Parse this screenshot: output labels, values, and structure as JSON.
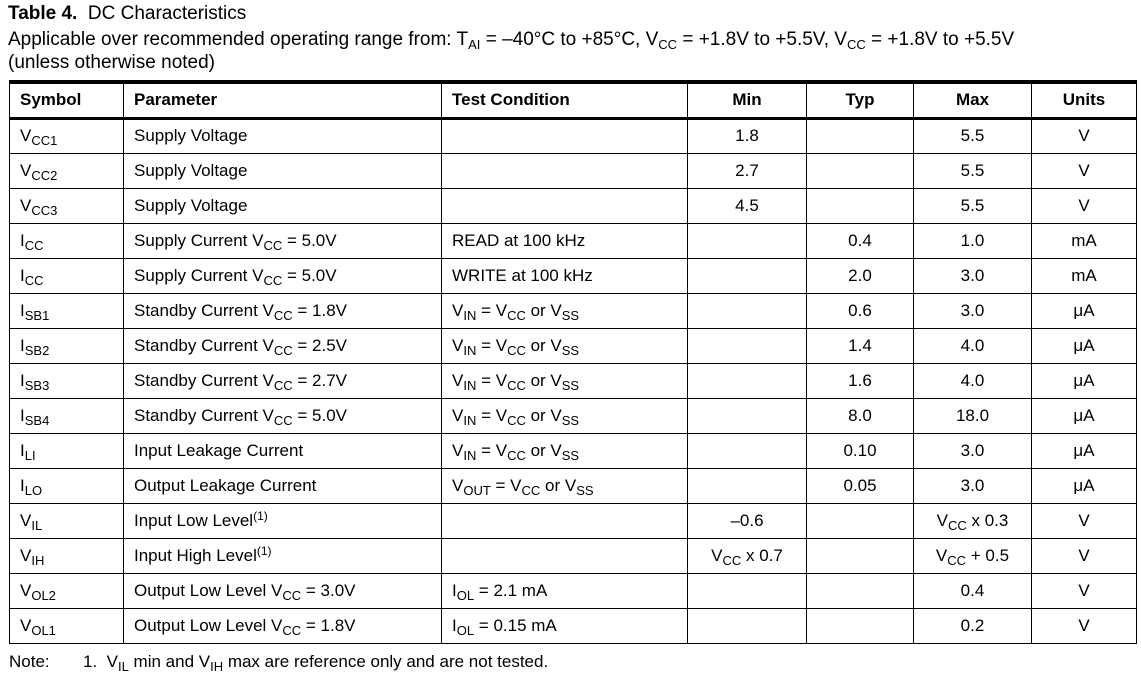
{
  "title": {
    "number": "Table 4.",
    "text": "DC Characteristics"
  },
  "subtitle": {
    "prefix": "Applicable over recommended operating range from: T",
    "t_sub": "AI",
    "range1": " = –40°C to +85°C, V",
    "vcc_sub1": "CC",
    "range2": " = +1.8V to +5.5V, V",
    "vcc_sub2": "CC",
    "range3": " = +1.8V to +5.5V",
    "line2": "(unless otherwise noted)"
  },
  "headers": [
    "Symbol",
    "Parameter",
    "Test Condition",
    "Min",
    "Typ",
    "Max",
    "Units"
  ],
  "rows": [
    {
      "sym": "V",
      "sym_sub": "CC1",
      "param": "Supply Voltage",
      "param_sub": "",
      "param_tail": "",
      "param_sup": "",
      "cond": {
        "t1": "",
        "s1": "",
        "t2": "",
        "s2": "",
        "t3": "",
        "s3": ""
      },
      "min": "1.8",
      "typ": "",
      "max": "5.5",
      "units": "V"
    },
    {
      "sym": "V",
      "sym_sub": "CC2",
      "param": "Supply Voltage",
      "param_sub": "",
      "param_tail": "",
      "param_sup": "",
      "cond": {
        "t1": "",
        "s1": "",
        "t2": "",
        "s2": "",
        "t3": "",
        "s3": ""
      },
      "min": "2.7",
      "typ": "",
      "max": "5.5",
      "units": "V"
    },
    {
      "sym": "V",
      "sym_sub": "CC3",
      "param": "Supply Voltage",
      "param_sub": "",
      "param_tail": "",
      "param_sup": "",
      "cond": {
        "t1": "",
        "s1": "",
        "t2": "",
        "s2": "",
        "t3": "",
        "s3": ""
      },
      "min": "4.5",
      "typ": "",
      "max": "5.5",
      "units": "V"
    },
    {
      "sym": "I",
      "sym_sub": "CC",
      "param": "Supply Current V",
      "param_sub": "CC",
      "param_tail": " = 5.0V",
      "param_sup": "",
      "cond": {
        "t1": "READ at 100 kHz",
        "s1": "",
        "t2": "",
        "s2": "",
        "t3": "",
        "s3": ""
      },
      "min": "",
      "typ": "0.4",
      "max": "1.0",
      "units": "mA"
    },
    {
      "sym": "I",
      "sym_sub": "CC",
      "param": "Supply Current V",
      "param_sub": "CC",
      "param_tail": " = 5.0V",
      "param_sup": "",
      "cond": {
        "t1": "WRITE at 100 kHz",
        "s1": "",
        "t2": "",
        "s2": "",
        "t3": "",
        "s3": ""
      },
      "min": "",
      "typ": "2.0",
      "max": "3.0",
      "units": "mA"
    },
    {
      "sym": "I",
      "sym_sub": "SB1",
      "param": "Standby Current V",
      "param_sub": "CC",
      "param_tail": " = 1.8V",
      "param_sup": "",
      "cond": {
        "t1": "V",
        "s1": "IN",
        "t2": " = V",
        "s2": "CC",
        "t3": " or V",
        "s3": "SS"
      },
      "min": "",
      "typ": "0.6",
      "max": "3.0",
      "units": "μA"
    },
    {
      "sym": "I",
      "sym_sub": "SB2",
      "param": "Standby Current V",
      "param_sub": "CC",
      "param_tail": " = 2.5V",
      "param_sup": "",
      "cond": {
        "t1": "V",
        "s1": "IN",
        "t2": " = V",
        "s2": "CC",
        "t3": " or V",
        "s3": "SS"
      },
      "min": "",
      "typ": "1.4",
      "max": "4.0",
      "units": "μA"
    },
    {
      "sym": "I",
      "sym_sub": "SB3",
      "param": "Standby Current V",
      "param_sub": "CC",
      "param_tail": " = 2.7V",
      "param_sup": "",
      "cond": {
        "t1": "V",
        "s1": "IN",
        "t2": " = V",
        "s2": "CC",
        "t3": " or V",
        "s3": "SS"
      },
      "min": "",
      "typ": "1.6",
      "max": "4.0",
      "units": "μA"
    },
    {
      "sym": "I",
      "sym_sub": "SB4",
      "param": "Standby Current V",
      "param_sub": "CC",
      "param_tail": " = 5.0V",
      "param_sup": "",
      "cond": {
        "t1": "V",
        "s1": "IN",
        "t2": " = V",
        "s2": "CC",
        "t3": " or V",
        "s3": "SS"
      },
      "min": "",
      "typ": "8.0",
      "max": "18.0",
      "units": "μA"
    },
    {
      "sym": "I",
      "sym_sub": "LI",
      "param": "Input Leakage Current",
      "param_sub": "",
      "param_tail": "",
      "param_sup": "",
      "cond": {
        "t1": "V",
        "s1": "IN",
        "t2": " = V",
        "s2": "CC",
        "t3": " or V",
        "s3": "SS"
      },
      "min": "",
      "typ": "0.10",
      "max": "3.0",
      "units": "μA"
    },
    {
      "sym": "I",
      "sym_sub": "LO",
      "param": "Output Leakage Current",
      "param_sub": "",
      "param_tail": "",
      "param_sup": "",
      "cond": {
        "t1": "V",
        "s1": "OUT",
        "t2": " = V",
        "s2": "CC",
        "t3": " or V",
        "s3": "SS"
      },
      "min": "",
      "typ": "0.05",
      "max": "3.0",
      "units": "μA"
    },
    {
      "sym": "V",
      "sym_sub": "IL",
      "param": "Input Low Level",
      "param_sub": "",
      "param_tail": "",
      "param_sup": "(1)",
      "cond": {
        "t1": "",
        "s1": "",
        "t2": "",
        "s2": "",
        "t3": "",
        "s3": ""
      },
      "min": "–0.6",
      "typ": "",
      "max_v": "V",
      "max_sub": "CC",
      "max_tail": " x 0.3",
      "units": "V"
    },
    {
      "sym": "V",
      "sym_sub": "IH",
      "param": "Input High Level",
      "param_sub": "",
      "param_tail": "",
      "param_sup": "(1)",
      "cond": {
        "t1": "",
        "s1": "",
        "t2": "",
        "s2": "",
        "t3": "",
        "s3": ""
      },
      "min_v": "V",
      "min_sub": "CC",
      "min_tail": " x 0.7",
      "typ": "",
      "max_v": "V",
      "max_sub": "CC",
      "max_tail": " + 0.5",
      "units": "V"
    },
    {
      "sym": "V",
      "sym_sub": "OL2",
      "param": "Output Low Level V",
      "param_sub": "CC",
      "param_tail": " = 3.0V",
      "param_sup": "",
      "cond": {
        "t1": "I",
        "s1": "OL",
        "t2": " = 2.1 mA",
        "s2": "",
        "t3": "",
        "s3": ""
      },
      "min": "",
      "typ": "",
      "max": "0.4",
      "units": "V"
    },
    {
      "sym": "V",
      "sym_sub": "OL1",
      "param": "Output Low Level V",
      "param_sub": "CC",
      "param_tail": " = 1.8V",
      "param_sup": "",
      "cond": {
        "t1": "I",
        "s1": "OL",
        "t2": " = 0.15 mA",
        "s2": "",
        "t3": "",
        "s3": ""
      },
      "min": "",
      "typ": "",
      "max": "0.2",
      "units": "V"
    }
  ],
  "note": {
    "label": "Note:",
    "num": "1.",
    "t1": "V",
    "s1": "IL",
    "t2": " min and V",
    "s2": "IH",
    "t3": " max are reference only and are not tested."
  }
}
